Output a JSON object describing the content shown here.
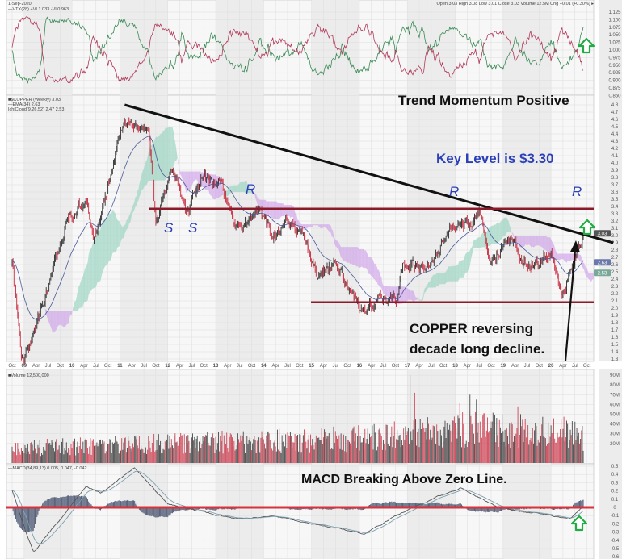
{
  "header": {
    "date": "1-Sep-2020",
    "quote": "Open 3.03  High 3.08  Low 3.01  Close 3.03  Volume 12.5M  Chg +0.01 (+0.30%) ▸"
  },
  "legends": {
    "vortex": "—VTX(28) +VI 1.033 -VI 0.963",
    "price": "■$COPPER (Weekly) 3.03",
    "ema": "—EMA(34) 2.63",
    "cloud": "IchiCloud(9,26,52) 2.47 2.53",
    "volume": "■Volume 12,500,000",
    "macd": "—MACD(34,89,13) 0.005, 0.047, -0.042"
  },
  "annotations": {
    "trend": "Trend Momentum Positive",
    "key_level": "Key Level is $3.30",
    "copper_line1": "COPPER reversing",
    "copper_line2": "decade long decline.",
    "macd": "MACD Breaking Above Zero Line.",
    "s1": "S",
    "s2": "S",
    "r1": "R",
    "r2": "R",
    "r3": "R"
  },
  "colors": {
    "up": "#2b2b2b",
    "down": "#c8283c",
    "trendline": "#111111",
    "level_line": "#8b1a2a",
    "macd_zero": "#d8323c",
    "cloud_bull": "#9fd6c4",
    "cloud_bear": "#d2a8ea",
    "ema": "#4a5a9a",
    "vi_plus": "#3a8a55",
    "vi_minus": "#b03a5a",
    "arrow": "#22aa44",
    "key_level_text": "#2b3fb8"
  },
  "chart_data": {
    "type": "candlestick",
    "timeframe": "weekly",
    "x_tick_labels": [
      "Oct",
      "09",
      "Apr",
      "Jul",
      "Oct",
      "10",
      "Apr",
      "Jul",
      "Oct",
      "11",
      "Apr",
      "Jul",
      "Oct",
      "12",
      "Apr",
      "Jul",
      "Oct",
      "13",
      "Apr",
      "Jul",
      "Oct",
      "14",
      "Apr",
      "Jul",
      "Oct",
      "15",
      "Apr",
      "Jul",
      "Oct",
      "16",
      "Apr",
      "Jul",
      "Oct",
      "17",
      "Apr",
      "Jul",
      "Oct",
      "18",
      "Apr",
      "Jul",
      "Oct",
      "19",
      "Apr",
      "Jul",
      "Oct",
      "20",
      "Apr",
      "Jul",
      "Oct",
      "21",
      "Apr"
    ],
    "price_ticks": [
      "4.8",
      "4.7",
      "4.6",
      "4.5",
      "4.4",
      "4.3",
      "4.2",
      "4.1",
      "4.0",
      "3.9",
      "3.8",
      "3.7",
      "3.6",
      "3.5",
      "3.4",
      "3.3",
      "3.2",
      "3.1",
      "3.0",
      "2.9",
      "2.8",
      "2.7",
      "2.6",
      "2.5",
      "2.4",
      "2.3",
      "2.2",
      "2.1",
      "2.0",
      "1.9",
      "1.8",
      "1.7",
      "1.6",
      "1.5",
      "1.4",
      "1.3"
    ],
    "price_range": [
      1.3,
      4.8
    ],
    "price_keypoints": [
      [
        2008.75,
        2.6
      ],
      [
        2008.95,
        1.3
      ],
      [
        2009.1,
        1.45
      ],
      [
        2009.5,
        2.3
      ],
      [
        2009.9,
        3.2
      ],
      [
        2010.3,
        3.5
      ],
      [
        2010.45,
        2.85
      ],
      [
        2010.9,
        4.1
      ],
      [
        2011.1,
        4.6
      ],
      [
        2011.6,
        4.4
      ],
      [
        2011.75,
        3.15
      ],
      [
        2012.1,
        3.9
      ],
      [
        2012.4,
        3.3
      ],
      [
        2012.7,
        3.8
      ],
      [
        2013.1,
        3.7
      ],
      [
        2013.5,
        3.05
      ],
      [
        2013.9,
        3.35
      ],
      [
        2014.2,
        3.0
      ],
      [
        2014.5,
        3.25
      ],
      [
        2014.9,
        2.9
      ],
      [
        2015.1,
        2.5
      ],
      [
        2015.5,
        2.6
      ],
      [
        2015.9,
        2.1
      ],
      [
        2016.05,
        2.0
      ],
      [
        2016.5,
        2.15
      ],
      [
        2016.8,
        2.1
      ],
      [
        2016.9,
        2.6
      ],
      [
        2017.4,
        2.55
      ],
      [
        2017.9,
        3.1
      ],
      [
        2018.4,
        3.2
      ],
      [
        2018.5,
        3.3
      ],
      [
        2018.7,
        2.7
      ],
      [
        2019.2,
        2.95
      ],
      [
        2019.4,
        2.65
      ],
      [
        2019.8,
        2.6
      ],
      [
        2020.0,
        2.85
      ],
      [
        2020.2,
        2.15
      ],
      [
        2020.3,
        2.3
      ],
      [
        2020.67,
        3.03
      ]
    ],
    "last_close": 3.03,
    "ema34_last": 2.63,
    "cloud_last": [
      2.47,
      2.53
    ],
    "trendline": [
      [
        2011.1,
        4.8
      ],
      [
        2021.3,
        2.9
      ]
    ],
    "resistance_level": 3.37,
    "support_level": 2.08,
    "vortex_ticks": [
      "1.125",
      "1.100",
      "1.075",
      "1.050",
      "1.025",
      "1.000",
      "0.975",
      "0.950",
      "0.925",
      "0.900",
      "0.875",
      "0.850"
    ],
    "vortex_range": [
      0.85,
      1.125
    ],
    "vortex_last": {
      "plus": 1.033,
      "minus": 0.963
    },
    "volume_ticks": [
      "90M",
      "80M",
      "70M",
      "60M",
      "50M",
      "40M",
      "30M",
      "20M"
    ],
    "volume_unit_millions": true,
    "volume_keypoints": [
      [
        2008.75,
        15
      ],
      [
        2012,
        20
      ],
      [
        2016,
        25
      ],
      [
        2017,
        30
      ],
      [
        2018,
        35
      ],
      [
        2020.67,
        30
      ]
    ],
    "volume_spikes": [
      [
        2017.05,
        90
      ],
      [
        2017.15,
        72
      ],
      [
        2018.3,
        70
      ],
      [
        2018.1,
        62
      ],
      [
        2018.45,
        65
      ],
      [
        2019.3,
        58
      ]
    ],
    "volume_last": 12.5,
    "macd_ticks": [
      "0.5",
      "0.4",
      "0.3",
      "0.2",
      "0.1",
      "0",
      "-0.1",
      "-0.2",
      "-0.3",
      "-0.4",
      "-0.5",
      "-0.6"
    ],
    "macd_range": [
      -0.6,
      0.55
    ],
    "macd_keypoints": [
      [
        2008.75,
        0.21
      ],
      [
        2009.0,
        -0.23
      ],
      [
        2009.2,
        -0.55
      ],
      [
        2010.3,
        0.26
      ],
      [
        2010.6,
        0.17
      ],
      [
        2011.3,
        0.48
      ],
      [
        2012.0,
        0.04
      ],
      [
        2013.4,
        -0.14
      ],
      [
        2014.2,
        -0.11
      ],
      [
        2016.1,
        -0.32
      ],
      [
        2017.0,
        -0.03
      ],
      [
        2018.1,
        0.24
      ],
      [
        2018.9,
        0.0
      ],
      [
        2019.8,
        -0.08
      ],
      [
        2020.4,
        -0.14
      ],
      [
        2020.67,
        0.005
      ]
    ],
    "macd_signal_last": 0.047
  }
}
